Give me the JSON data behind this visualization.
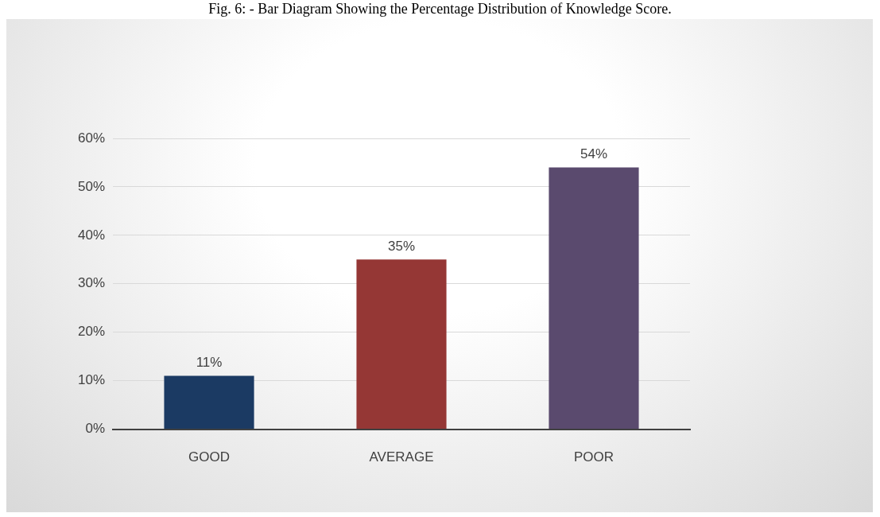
{
  "chart_data": {
    "type": "bar",
    "title": "Fig. 6: - Bar Diagram Showing the Percentage Distribution of Knowledge Score.",
    "categories": [
      "GOOD",
      "AVERAGE",
      "POOR"
    ],
    "values": [
      11,
      35,
      54
    ],
    "colors": [
      "#1b3a63",
      "#953735",
      "#5a4a6e"
    ],
    "value_labels": [
      "11%",
      "35%",
      "54%"
    ],
    "ylim": [
      0,
      60
    ],
    "yticks": [
      {
        "value": 0,
        "label": "0%"
      },
      {
        "value": 10,
        "label": "10%"
      },
      {
        "value": 20,
        "label": "20%"
      },
      {
        "value": 30,
        "label": "30%"
      },
      {
        "value": 40,
        "label": "40%"
      },
      {
        "value": 50,
        "label": "50%"
      },
      {
        "value": 60,
        "label": "60%"
      }
    ],
    "grid": "y",
    "legend": false
  }
}
